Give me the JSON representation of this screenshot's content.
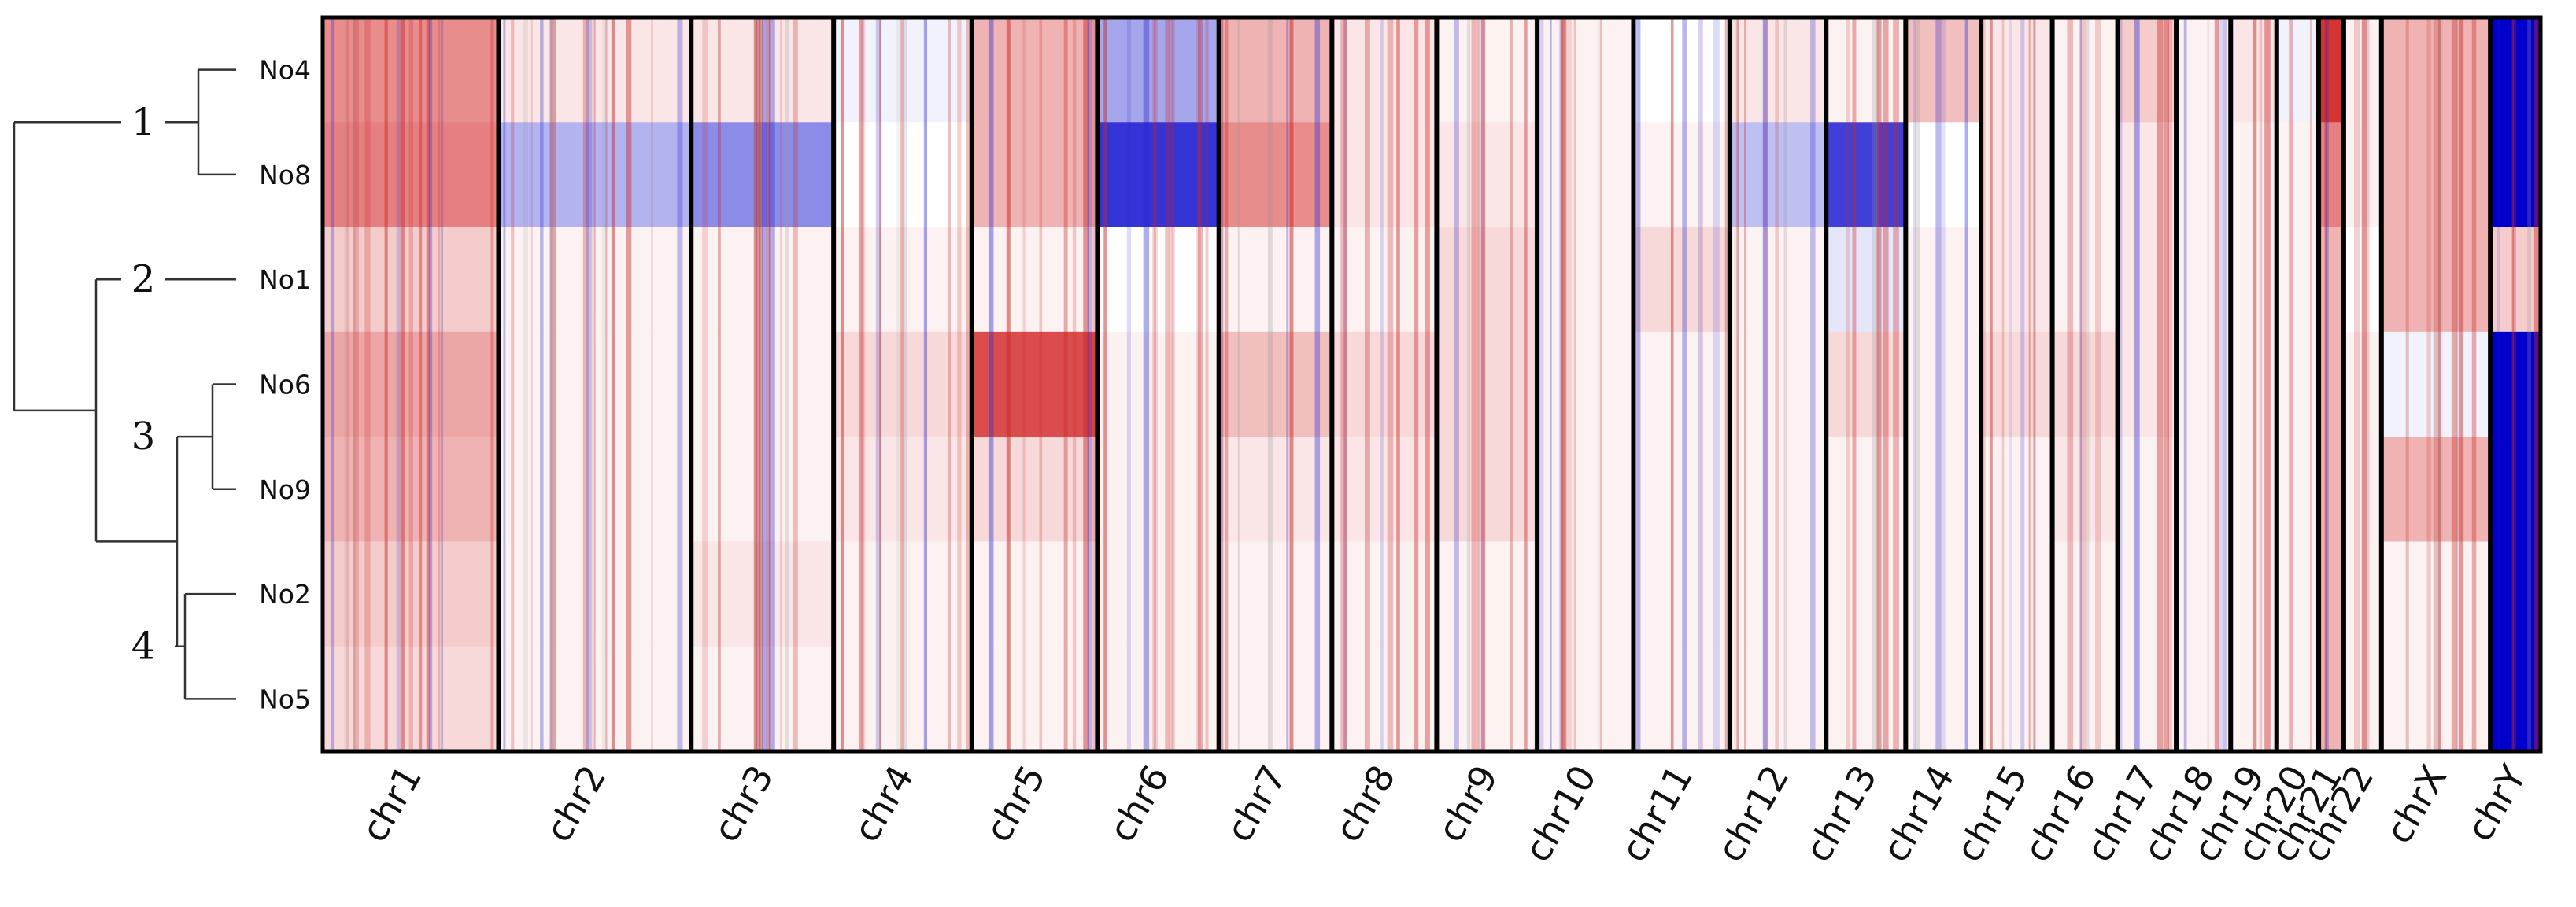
{
  "chart_data": {
    "type": "heatmap",
    "title": "",
    "xlabel": "",
    "ylabel": "",
    "samples": [
      "No4",
      "No8",
      "No1",
      "No6",
      "No9",
      "No2",
      "No5"
    ],
    "clusters": [
      {
        "label": "1",
        "members": [
          "No4",
          "No8"
        ]
      },
      {
        "label": "2",
        "members": [
          "No1"
        ]
      },
      {
        "label": "3",
        "members": [
          "No6",
          "No9"
        ]
      },
      {
        "label": "4",
        "members": [
          "No2",
          "No5"
        ]
      }
    ],
    "chromosomes": [
      "chr1",
      "chr2",
      "chr3",
      "chr4",
      "chr5",
      "chr6",
      "chr7",
      "chr8",
      "chr9",
      "chr10",
      "chr11",
      "chr12",
      "chr13",
      "chr14",
      "chr15",
      "chr16",
      "chr17",
      "chr18",
      "chr19",
      "chr20",
      "chr21",
      "chr22",
      "chrX",
      "chrY"
    ],
    "chromosome_widths": [
      210,
      230,
      170,
      165,
      150,
      145,
      135,
      125,
      120,
      115,
      115,
      115,
      95,
      90,
      85,
      78,
      70,
      65,
      55,
      50,
      30,
      45,
      130,
      60
    ],
    "color_scale": {
      "low": "#0000cc",
      "mid": "#ffffff",
      "high": "#cc0000",
      "min": -1,
      "max": 1
    },
    "values": [
      [
        0.45,
        0.1,
        0.1,
        -0.05,
        0.3,
        -0.35,
        0.3,
        0.1,
        0.05,
        0.05,
        0.0,
        0.1,
        0.05,
        0.25,
        0.1,
        0.05,
        0.2,
        0.05,
        0.1,
        -0.05,
        0.8,
        0.05,
        0.3,
        -1.0
      ],
      [
        0.5,
        -0.3,
        -0.45,
        0.0,
        0.3,
        -0.8,
        0.45,
        0.1,
        0.1,
        0.05,
        0.05,
        -0.25,
        -0.75,
        0.0,
        0.1,
        0.05,
        0.1,
        0.05,
        0.05,
        0.05,
        0.5,
        0.05,
        0.3,
        -1.0
      ],
      [
        0.2,
        0.05,
        0.05,
        0.05,
        0.05,
        0.0,
        0.05,
        0.05,
        0.15,
        0.05,
        0.15,
        0.05,
        -0.1,
        0.05,
        0.1,
        0.05,
        0.1,
        0.05,
        0.05,
        0.05,
        0.3,
        0.0,
        0.3,
        0.2
      ],
      [
        0.35,
        0.05,
        0.05,
        0.15,
        0.7,
        0.05,
        0.25,
        0.15,
        0.15,
        0.05,
        0.05,
        0.05,
        0.15,
        0.05,
        0.15,
        0.15,
        0.1,
        0.05,
        0.05,
        0.05,
        0.3,
        0.05,
        -0.05,
        -1.0
      ],
      [
        0.3,
        0.05,
        0.05,
        0.1,
        0.15,
        0.05,
        0.1,
        0.1,
        0.15,
        0.05,
        0.05,
        0.05,
        0.05,
        0.05,
        0.05,
        0.1,
        0.05,
        0.05,
        0.05,
        0.05,
        0.3,
        0.05,
        0.3,
        -1.0
      ],
      [
        0.2,
        0.05,
        0.1,
        0.05,
        0.05,
        0.05,
        0.05,
        0.05,
        0.05,
        0.05,
        0.05,
        0.05,
        0.05,
        0.05,
        0.05,
        0.05,
        0.05,
        0.05,
        0.05,
        0.05,
        0.3,
        0.05,
        0.05,
        -1.0
      ],
      [
        0.15,
        0.05,
        0.05,
        0.05,
        0.05,
        0.05,
        0.05,
        0.05,
        0.05,
        0.05,
        0.05,
        0.05,
        0.05,
        0.05,
        0.05,
        0.05,
        0.05,
        0.05,
        0.05,
        0.05,
        0.3,
        0.05,
        0.05,
        -1.0
      ]
    ],
    "grid": false,
    "legend": "none"
  }
}
